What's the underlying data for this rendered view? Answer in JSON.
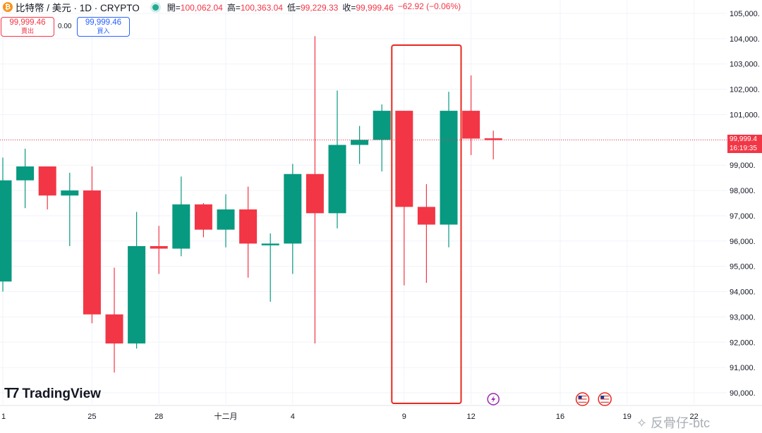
{
  "header": {
    "symbol": "比特幣 / 美元 · 1D · CRYPTO",
    "coin_glyph": "₿",
    "open_label": "開=",
    "open_value": "100,062.04",
    "high_label": "高=",
    "high_value": "100,363.04",
    "low_label": "低=",
    "low_value": "99,229.33",
    "close_label": "收=",
    "close_value": "99,999.46",
    "change_value": "−62.92 (−0.06%)"
  },
  "trade": {
    "sell_price": "99,999.46",
    "sell_label": "賣出",
    "spread": "0.00",
    "buy_price": "99,999.46",
    "buy_label": "買入"
  },
  "logo_text": "TradingView",
  "current_price_label": {
    "price": "99,999.4",
    "countdown": "16:19:35"
  },
  "watermark": "反骨仔-btc",
  "colors": {
    "up": "#089981",
    "down": "#f23645",
    "grid": "#f0f3fa",
    "axis_text": "#131722",
    "highlight_box": "#e8281e",
    "event_icon": "#9c27b0"
  },
  "chart_data": {
    "type": "candlestick",
    "y_axis": {
      "range": [
        89700,
        105400
      ],
      "ticks": [
        90000,
        91000,
        92000,
        93000,
        94000,
        95000,
        96000,
        97000,
        98000,
        99000,
        100000,
        101000,
        102000,
        103000,
        104000,
        105000
      ],
      "tick_labels": [
        "90,000.",
        "91,000.",
        "92,000.",
        "93,000.",
        "94,000.",
        "95,000.",
        "96,000.",
        "97,000.",
        "98,000.",
        "99,000.",
        "100,000.",
        "101,000.",
        "102,000.",
        "103,000.",
        "104,000.",
        "105,000."
      ]
    },
    "x_ticks": [
      {
        "label": "1",
        "index": 0
      },
      {
        "label": "25",
        "index": 4
      },
      {
        "label": "28",
        "index": 7
      },
      {
        "label": "十二月",
        "index": 10
      },
      {
        "label": "4",
        "index": 13
      },
      {
        "label": "9",
        "index": 18
      },
      {
        "label": "12",
        "index": 21
      },
      {
        "label": "16",
        "index": 25
      },
      {
        "label": "19",
        "index": 28
      },
      {
        "label": "22",
        "index": 31
      }
    ],
    "candles": [
      {
        "o": 94400,
        "h": 99300,
        "l": 94000,
        "c": 98400
      },
      {
        "o": 98400,
        "h": 99650,
        "l": 97300,
        "c": 98950
      },
      {
        "o": 98950,
        "h": 98950,
        "l": 97250,
        "c": 97800
      },
      {
        "o": 97800,
        "h": 98700,
        "l": 95800,
        "c": 98000
      },
      {
        "o": 98000,
        "h": 98950,
        "l": 92750,
        "c": 93100
      },
      {
        "o": 93100,
        "h": 94950,
        "l": 90800,
        "c": 91950
      },
      {
        "o": 91950,
        "h": 97150,
        "l": 91750,
        "c": 95800
      },
      {
        "o": 95800,
        "h": 96600,
        "l": 94700,
        "c": 95700
      },
      {
        "o": 95700,
        "h": 98550,
        "l": 95400,
        "c": 97450
      },
      {
        "o": 97450,
        "h": 97500,
        "l": 96150,
        "c": 96450
      },
      {
        "o": 96450,
        "h": 97850,
        "l": 95750,
        "c": 97250
      },
      {
        "o": 97250,
        "h": 98150,
        "l": 94550,
        "c": 95900
      },
      {
        "o": 95900,
        "h": 96300,
        "l": 93600,
        "c": 95900
      },
      {
        "o": 95900,
        "h": 99050,
        "l": 94700,
        "c": 98650
      },
      {
        "o": 98650,
        "h": 104100,
        "l": 91950,
        "c": 97100
      },
      {
        "o": 97100,
        "h": 101950,
        "l": 96500,
        "c": 99800
      },
      {
        "o": 99800,
        "h": 100550,
        "l": 99050,
        "c": 100000
      },
      {
        "o": 100000,
        "h": 101400,
        "l": 98750,
        "c": 101150
      },
      {
        "o": 101150,
        "h": 101150,
        "l": 94250,
        "c": 97350
      },
      {
        "o": 97350,
        "h": 98250,
        "l": 94350,
        "c": 96650
      },
      {
        "o": 96650,
        "h": 101900,
        "l": 95750,
        "c": 101150
      },
      {
        "o": 101150,
        "h": 102550,
        "l": 99400,
        "c": 100050
      },
      {
        "o": 100062.04,
        "h": 100363.04,
        "l": 99229.33,
        "c": 99999.46
      }
    ],
    "current_price": 99999.46,
    "highlight_range": {
      "from_index": 18,
      "to_index": 20
    },
    "event_markers": [
      {
        "index": 22,
        "icon": "lightning-icon"
      },
      {
        "index": 26,
        "icon": "us-flag-icon"
      },
      {
        "index": 27,
        "icon": "us-flag-icon"
      }
    ]
  }
}
